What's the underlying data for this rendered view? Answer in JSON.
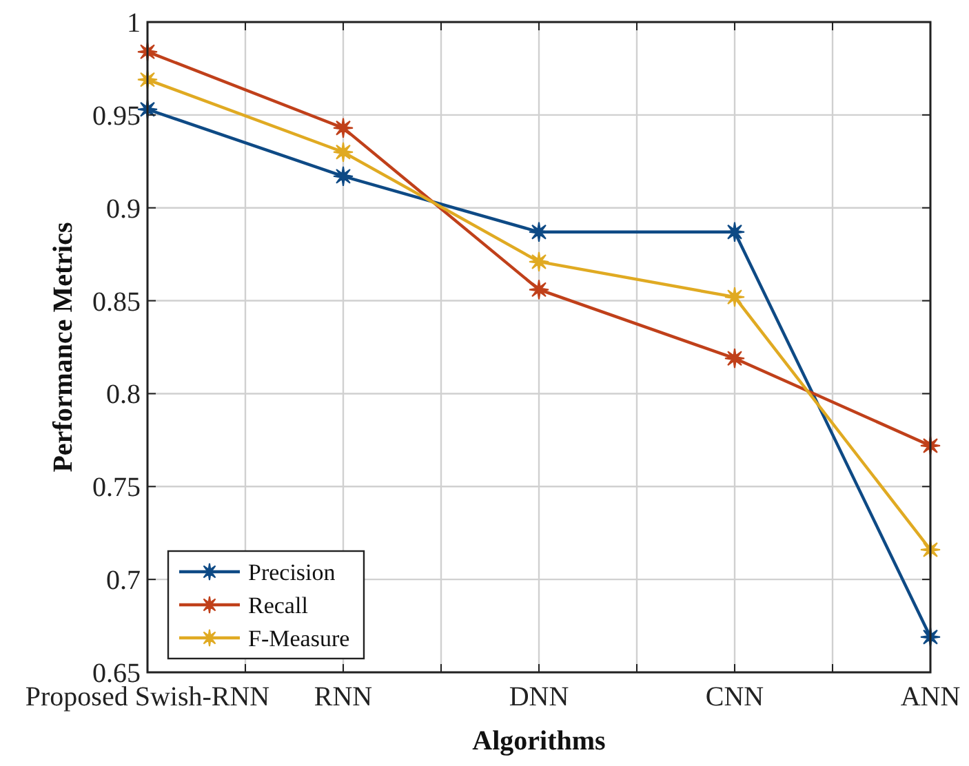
{
  "chart_data": {
    "type": "line",
    "xlabel": "Algorithms",
    "ylabel": "Performance Metrics",
    "categories": [
      "Proposed Swish-RNN",
      "RNN",
      "DNN",
      "CNN",
      "ANN"
    ],
    "ylim": [
      0.65,
      1
    ],
    "yticks": [
      0.65,
      0.7,
      0.75,
      0.8,
      0.85,
      0.9,
      0.95,
      1
    ],
    "grid": true,
    "legend": "bottom left",
    "marker": "star",
    "line_style": "solid",
    "series": [
      {
        "name": "Precision",
        "color": "#0e4a85",
        "values": [
          0.953,
          0.917,
          0.887,
          0.887,
          0.669
        ]
      },
      {
        "name": "Recall",
        "color": "#c0401a",
        "values": [
          0.984,
          0.943,
          0.856,
          0.819,
          0.772
        ]
      },
      {
        "name": "F-Measure",
        "color": "#e0aa22",
        "values": [
          0.969,
          0.93,
          0.871,
          0.852,
          0.716
        ]
      }
    ]
  }
}
